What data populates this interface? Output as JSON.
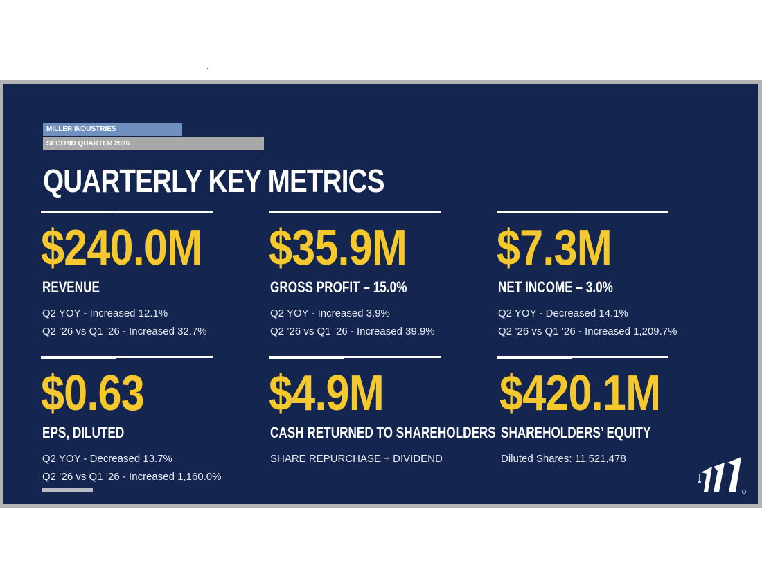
{
  "header": {
    "company": "MILLER INDUSTRIES",
    "quarter": "SECOND QUARTER 2026",
    "title": "QUARTERLY KEY METRICS"
  },
  "metrics": [
    {
      "value": "$240.0M",
      "label": "REVENUE",
      "line1": "Q2 YOY - Increased 12.1%",
      "line2": "Q2 ’26 vs Q1 ’26 - Increased 32.7%"
    },
    {
      "value": "$35.9M",
      "label": "GROSS PROFIT – 15.0%",
      "line1": "Q2 YOY - Increased 3.9%",
      "line2": "Q2 ’26 vs Q1 ’26 - Increased 39.9%"
    },
    {
      "value": "$7.3M",
      "label": "NET INCOME – 3.0%",
      "line1": "Q2 YOY - Decreased 14.1%",
      "line2": "Q2 ’26 vs Q1 ’26 - Increased 1,209.7%"
    },
    {
      "value": "$0.63",
      "label": "EPS, DILUTED",
      "line1": "Q2 YOY - Decreased 13.7%",
      "line2": "Q2 ’26 vs Q1 ’26 - Increased 1,160.0%"
    },
    {
      "value": "$4.9M",
      "label": "CASH RETURNED TO SHAREHOLDERS",
      "line1": "SHARE REPURCHASE + DIVIDEND",
      "line2": ""
    },
    {
      "value": "$420.1M",
      "label": "SHAREHOLDERS’ EQUITY",
      "line1": "Diluted Shares: 11,521,478",
      "line2": ""
    }
  ],
  "colors": {
    "background": "#14254f",
    "accent_value": "#f5c92e",
    "company_tag": "#6f8fbf",
    "quarter_tag": "#a8a8a8"
  },
  "icons": {
    "logo": "miller-industries-logo-icon"
  }
}
